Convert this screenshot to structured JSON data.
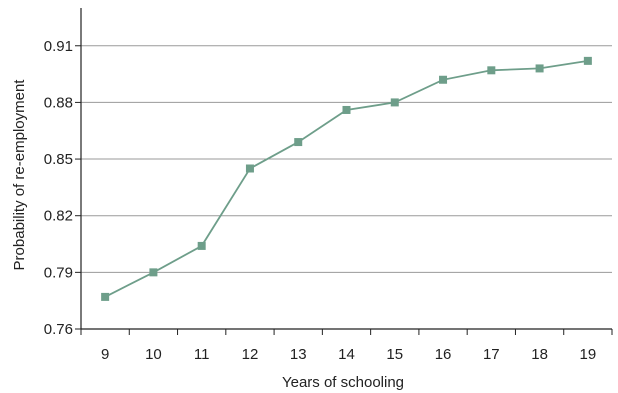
{
  "chart_data": {
    "type": "line",
    "title": "",
    "xlabel": "Years of schooling",
    "ylabel": "Probability of re-employment",
    "x": [
      9,
      10,
      11,
      12,
      13,
      14,
      15,
      16,
      17,
      18,
      19
    ],
    "series": [
      {
        "values": [
          0.777,
          0.79,
          0.804,
          0.845,
          0.859,
          0.876,
          0.88,
          0.892,
          0.897,
          0.898,
          0.902
        ]
      }
    ],
    "xlim": [
      8.5,
      19.5
    ],
    "ylim": [
      0.76,
      0.93
    ],
    "yticks": [
      0.76,
      0.79,
      0.82,
      0.85,
      0.88,
      0.91
    ],
    "ytick_labels": [
      "0.76",
      "0.79",
      "0.82",
      "0.85",
      "0.88",
      "0.91"
    ],
    "xtick_labels": [
      "9",
      "10",
      "11",
      "12",
      "13",
      "14",
      "15",
      "16",
      "17",
      "18",
      "19"
    ],
    "grid": "horizontal",
    "legend": "none",
    "colors": {
      "series": "#6e9e8a",
      "grid": "#9a9a9a",
      "axis": "#222222"
    }
  }
}
